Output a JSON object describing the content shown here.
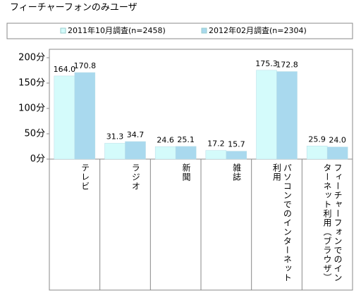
{
  "chart_data": {
    "type": "bar",
    "title": "フィーチャーフォンのみユーザ",
    "categories": [
      "テレビ",
      "ラジオ",
      "新聞",
      "雑誌",
      "パソコンでのインターネット利用",
      "フィーチャーフォンでのインターネット利用（ブラウザ）"
    ],
    "series": [
      {
        "name": "2011年10月調査(n=2458)",
        "color": "#d4fbfb",
        "values": [
          164.0,
          31.3,
          24.6,
          17.2,
          175.3,
          25.9
        ],
        "value_labels": [
          "164.0",
          "31.3",
          "24.6",
          "17.2",
          "175.3",
          "25.9"
        ]
      },
      {
        "name": "2012年02月調査(n=2304)",
        "color": "#a9d9ee",
        "values": [
          170.8,
          34.7,
          25.1,
          15.7,
          172.8,
          24.0
        ],
        "value_labels": [
          "170.8",
          "34.7",
          "25.1",
          "15.7",
          "172.8",
          "24.0"
        ]
      }
    ],
    "ylim": [
      0,
      200
    ],
    "yticks": [
      {
        "value": 0,
        "label": "0分"
      },
      {
        "value": 50,
        "label": "50分"
      },
      {
        "value": 100,
        "label": "100分"
      },
      {
        "value": 150,
        "label": "150分"
      },
      {
        "value": 200,
        "label": "200分"
      }
    ],
    "legend": "top"
  }
}
